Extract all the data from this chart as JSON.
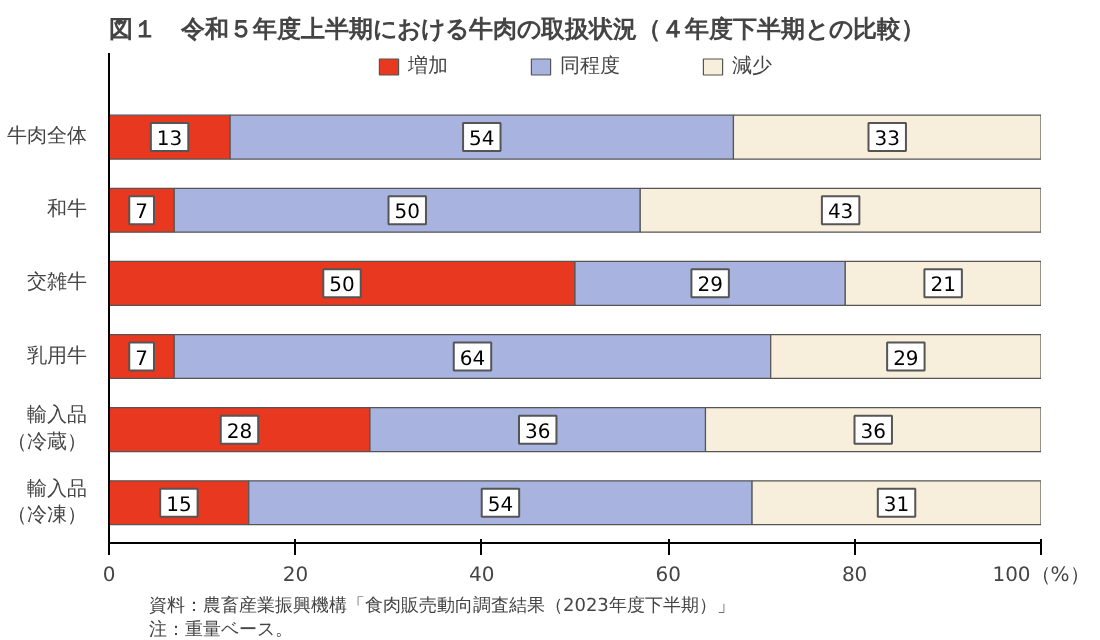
{
  "chart_data": {
    "type": "bar",
    "orientation": "horizontal",
    "stacked": true,
    "title": "図１　令和５年度上半期における牛肉の取扱状況（４年度下半期との比較）",
    "categories": [
      "牛肉全体",
      "和牛",
      "交雑牛",
      "乳用牛",
      "輸入品（冷蔵）",
      "輸入品（冷凍）"
    ],
    "series": [
      {
        "name": "増加",
        "color": "#e8381f",
        "values": [
          13,
          7,
          50,
          7,
          28,
          15
        ]
      },
      {
        "name": "同程度",
        "color": "#a9b3e0",
        "values": [
          54,
          50,
          29,
          64,
          36,
          54
        ]
      },
      {
        "name": "減少",
        "color": "#f7eedc",
        "values": [
          33,
          43,
          21,
          29,
          36,
          31
        ]
      }
    ],
    "xlim": [
      0,
      100
    ],
    "xticks": [
      0,
      20,
      40,
      60,
      80,
      {
        "value": 100,
        "label": "100（%）"
      }
    ],
    "data_labels": true,
    "legend": "top",
    "grid": false,
    "annotations": [
      "資料：農畜産業振興機構「食肉販売動向調査結果（2023年度下半期）」",
      "注：重量ベース。"
    ]
  }
}
